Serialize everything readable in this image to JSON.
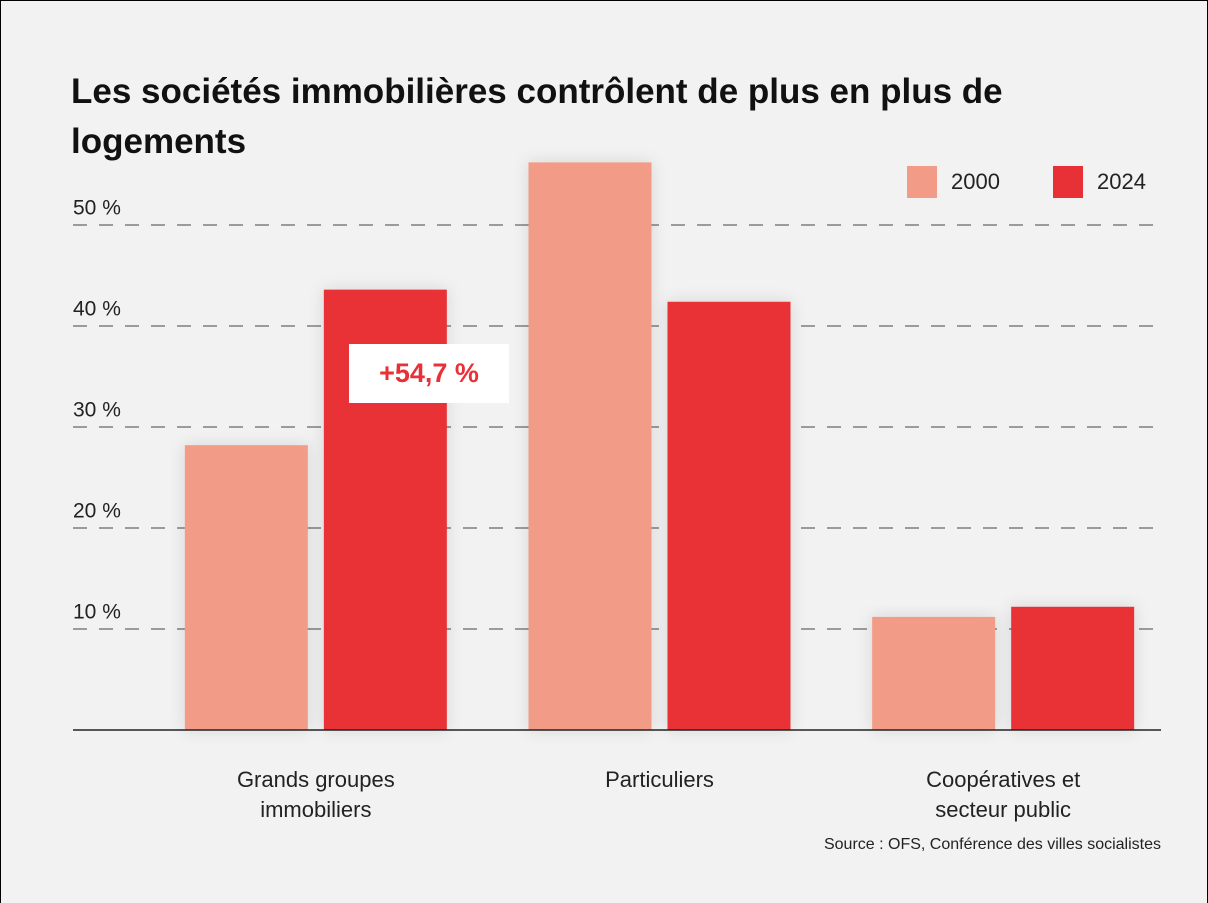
{
  "chart_data": {
    "type": "bar",
    "title": "Les sociétés immobilières contrôlent de plus en plus de logements",
    "categories": [
      "Grands groupes immobiliers",
      "Particuliers",
      "Coopératives et secteur public"
    ],
    "series": [
      {
        "name": "2000",
        "color": "#f29b86",
        "values": [
          28.2,
          56.2,
          11.2
        ]
      },
      {
        "name": "2024",
        "color": "#e83136",
        "values": [
          43.6,
          42.4,
          12.2
        ]
      }
    ],
    "ylim": [
      0,
      60
    ],
    "yticks": [
      {
        "value": 10,
        "label": "10 %"
      },
      {
        "value": 20,
        "label": "20 %"
      },
      {
        "value": 30,
        "label": "30 %"
      },
      {
        "value": 40,
        "label": "40 %"
      },
      {
        "value": 50,
        "label": "50 %"
      }
    ],
    "grid": true,
    "legend": "top-right",
    "annotation": "+54,7 %",
    "source": "Source : OFS, Conférence des villes socialistes"
  }
}
